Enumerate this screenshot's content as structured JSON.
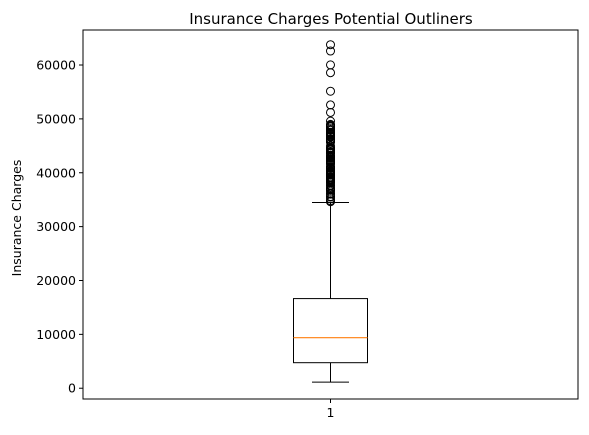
{
  "chart_data": {
    "type": "box",
    "title": "Insurance Charges Potential Outliners",
    "xlabel": "",
    "ylabel": "Insurance Charges",
    "categories": [
      "1"
    ],
    "ylim": [
      -2000,
      66500
    ],
    "yticks": [
      0,
      10000,
      20000,
      30000,
      40000,
      50000,
      60000
    ],
    "ytick_labels": [
      "0",
      "10000",
      "20000",
      "30000",
      "40000",
      "50000",
      "60000"
    ],
    "grid": false,
    "box": {
      "min_whisker": 1122,
      "q1": 4740,
      "median": 9382,
      "q3": 16640,
      "max_whisker": 34472,
      "outliers": [
        34617,
        34806,
        35148,
        35491,
        35586,
        36021,
        36197,
        36580,
        36837,
        36910,
        37079,
        37270,
        37607,
        37701,
        38126,
        38245,
        38282,
        38511,
        38711,
        38746,
        38792,
        38998,
        39047,
        39125,
        39241,
        39556,
        39597,
        39611,
        39725,
        39727,
        39772,
        39837,
        39871,
        39983,
        40003,
        40103,
        40182,
        40273,
        40419,
        40720,
        40904,
        40932,
        40941,
        40974,
        41034,
        41097,
        41661,
        41676,
        41919,
        41949,
        41999,
        42112,
        42124,
        42211,
        42303,
        42560,
        42760,
        42856,
        42969,
        42983,
        43254,
        43578,
        43753,
        43813,
        43896,
        43921,
        43943,
        44202,
        44260,
        44400,
        44423,
        44501,
        44585,
        44641,
        45008,
        45702,
        45710,
        45863,
        46113,
        46151,
        46200,
        46255,
        46599,
        46661,
        46719,
        46889,
        47055,
        47269,
        47291,
        47305,
        47403,
        47462,
        47497,
        47896,
        47928,
        48173,
        48517,
        48549,
        48675,
        48824,
        48885,
        48970,
        49577,
        51195,
        52590,
        55135,
        58571,
        60021,
        62593,
        63770
      ]
    },
    "colors": {
      "box": "#000000",
      "median": "#ff7f0e",
      "outlier_edge": "#000000"
    }
  }
}
